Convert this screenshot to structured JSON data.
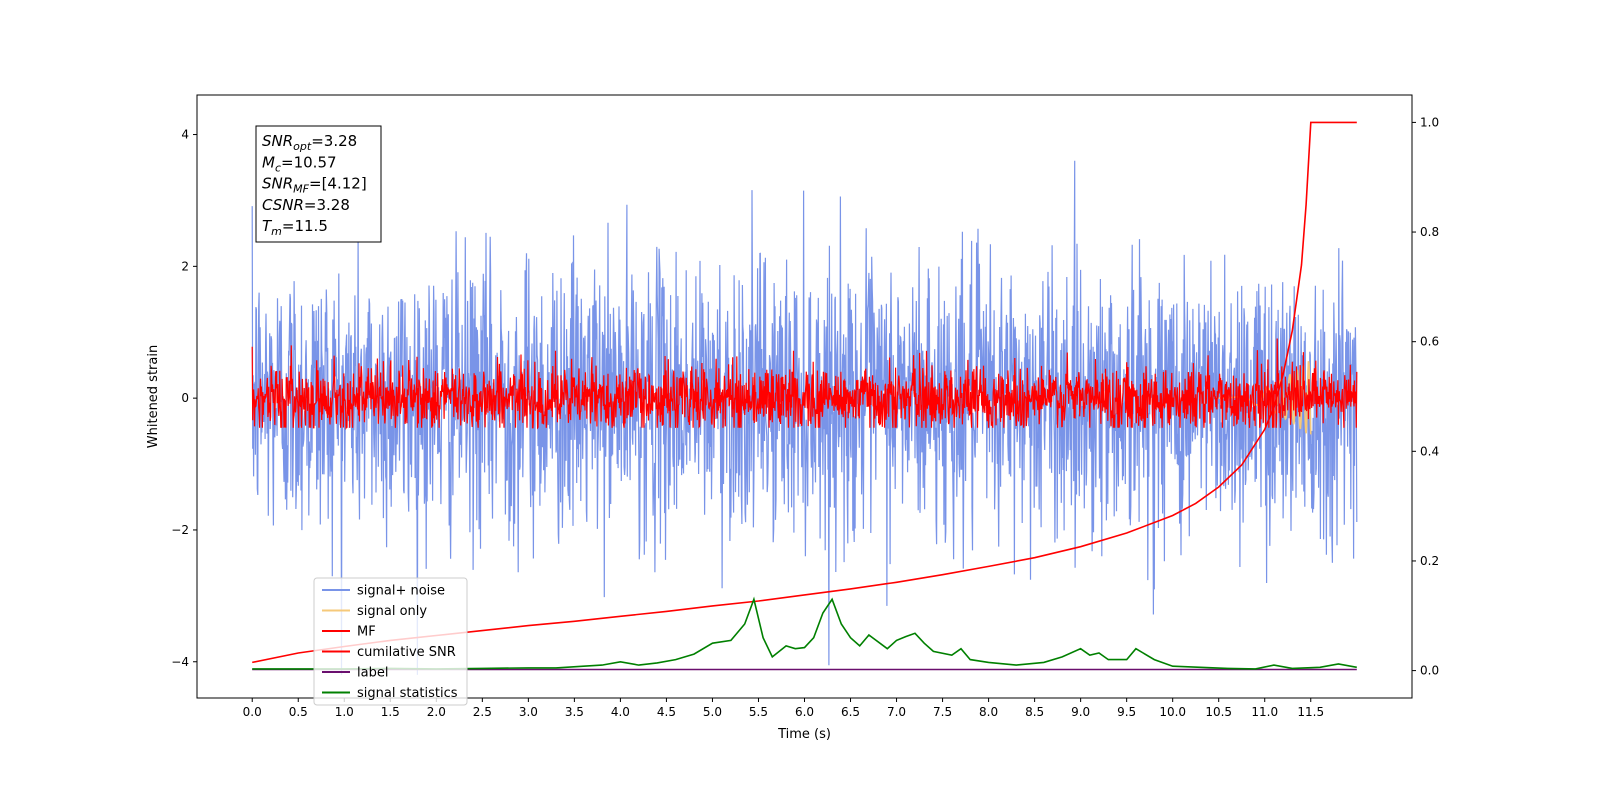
{
  "chart_data": {
    "type": "line",
    "xlabel": "Time (s)",
    "ylabel": "Whitened strain",
    "xlim": [
      -0.6,
      12.6
    ],
    "ylim": [
      -4.55,
      4.6
    ],
    "y2lim": [
      -0.05,
      1.05
    ],
    "x_ticks": [
      0.0,
      0.5,
      1.0,
      1.5,
      2.0,
      2.5,
      3.0,
      3.5,
      4.0,
      4.5,
      5.0,
      5.5,
      6.0,
      6.5,
      7.0,
      7.5,
      8.0,
      8.5,
      9.0,
      9.5,
      10.0,
      10.5,
      11.0,
      11.5
    ],
    "x_tick_labels": [
      "0.0",
      "0.5",
      "1.0",
      "1.5",
      "2.0",
      "2.5",
      "3.0",
      "3.5",
      "4.0",
      "4.5",
      "5.0",
      "5.5",
      "6.0",
      "6.5",
      "7.0",
      "7.5",
      "8.0",
      "8.5",
      "9.0",
      "9.5",
      "10.0",
      "10.5",
      "11.0",
      "11.5"
    ],
    "y_ticks": [
      -4,
      -2,
      0,
      2,
      4
    ],
    "y_tick_labels": [
      "−4",
      "−2",
      "0",
      "2",
      "4"
    ],
    "y2_ticks": [
      0.0,
      0.2,
      0.4,
      0.6,
      0.8,
      1.0
    ],
    "y2_tick_labels": [
      "0.0",
      "0.2",
      "0.4",
      "0.6",
      "0.8",
      "1.0"
    ],
    "grid": false,
    "legend_position": "lower-left",
    "annotation": {
      "lines": [
        {
          "main": "SNR",
          "sub": "opt",
          "value": "=3.28"
        },
        {
          "main": "M",
          "sub": "c",
          "value": "=10.57"
        },
        {
          "main": "SNR",
          "sub": "MF",
          "value": "=[4.12]"
        },
        {
          "main": "CSNR",
          "sub": "",
          "value": "=3.28"
        },
        {
          "main": "T",
          "sub": "m",
          "value": "=11.5"
        }
      ]
    },
    "series": [
      {
        "name": "signal+ noise",
        "color": "#7994e8",
        "kind": "noise",
        "amplitude": 1.0,
        "x_range": [
          0,
          12
        ]
      },
      {
        "name": "signal only",
        "color": "#f6c97a",
        "kind": "chirp",
        "x_range": [
          10.5,
          11.5
        ],
        "peak": 0.6
      },
      {
        "name": "MF",
        "color": "#ff0000",
        "kind": "noise",
        "amplitude": 0.25,
        "x_range": [
          0,
          12
        ]
      },
      {
        "name": "cumilative SNR",
        "color": "#ff0000",
        "axis": "right",
        "x": [
          0,
          0.5,
          1,
          1.5,
          2,
          2.5,
          3,
          3.5,
          4,
          4.5,
          5,
          5.5,
          6,
          6.5,
          7,
          7.5,
          8,
          8.5,
          9,
          9.5,
          10,
          10.25,
          10.5,
          10.75,
          11,
          11.1,
          11.2,
          11.3,
          11.4,
          11.45,
          11.5,
          12
        ],
        "y": [
          0.015,
          0.032,
          0.044,
          0.055,
          0.064,
          0.073,
          0.082,
          0.09,
          0.099,
          0.108,
          0.118,
          0.127,
          0.138,
          0.149,
          0.161,
          0.175,
          0.19,
          0.206,
          0.226,
          0.251,
          0.283,
          0.305,
          0.335,
          0.375,
          0.44,
          0.48,
          0.54,
          0.62,
          0.74,
          0.85,
          1.0,
          1.0
        ]
      },
      {
        "name": "label",
        "color": "#6a0f6e",
        "axis": "right",
        "x": [
          0,
          12
        ],
        "y": [
          0.002,
          0.002
        ]
      },
      {
        "name": "signal statistics",
        "color": "#008000",
        "axis": "right",
        "x": [
          0,
          0.5,
          1,
          1.5,
          2,
          2.5,
          3,
          3.3,
          3.6,
          3.8,
          4.0,
          4.2,
          4.4,
          4.6,
          4.8,
          5.0,
          5.2,
          5.35,
          5.45,
          5.55,
          5.65,
          5.8,
          5.9,
          6.0,
          6.1,
          6.2,
          6.3,
          6.4,
          6.5,
          6.6,
          6.7,
          6.9,
          7.0,
          7.1,
          7.2,
          7.3,
          7.4,
          7.6,
          7.7,
          7.8,
          8.0,
          8.3,
          8.6,
          8.8,
          9.0,
          9.1,
          9.2,
          9.3,
          9.5,
          9.6,
          9.8,
          10.0,
          10.3,
          10.6,
          10.9,
          11.1,
          11.3,
          11.6,
          11.8,
          12
        ],
        "y": [
          0.003,
          0.003,
          0.003,
          0.004,
          0.003,
          0.004,
          0.005,
          0.005,
          0.008,
          0.01,
          0.016,
          0.01,
          0.014,
          0.02,
          0.03,
          0.05,
          0.055,
          0.085,
          0.13,
          0.06,
          0.025,
          0.045,
          0.04,
          0.042,
          0.06,
          0.105,
          0.13,
          0.085,
          0.06,
          0.045,
          0.065,
          0.04,
          0.055,
          0.062,
          0.068,
          0.05,
          0.035,
          0.028,
          0.04,
          0.02,
          0.015,
          0.01,
          0.015,
          0.025,
          0.04,
          0.028,
          0.032,
          0.02,
          0.02,
          0.04,
          0.02,
          0.008,
          0.006,
          0.004,
          0.003,
          0.01,
          0.004,
          0.006,
          0.012,
          0.006
        ]
      }
    ]
  }
}
